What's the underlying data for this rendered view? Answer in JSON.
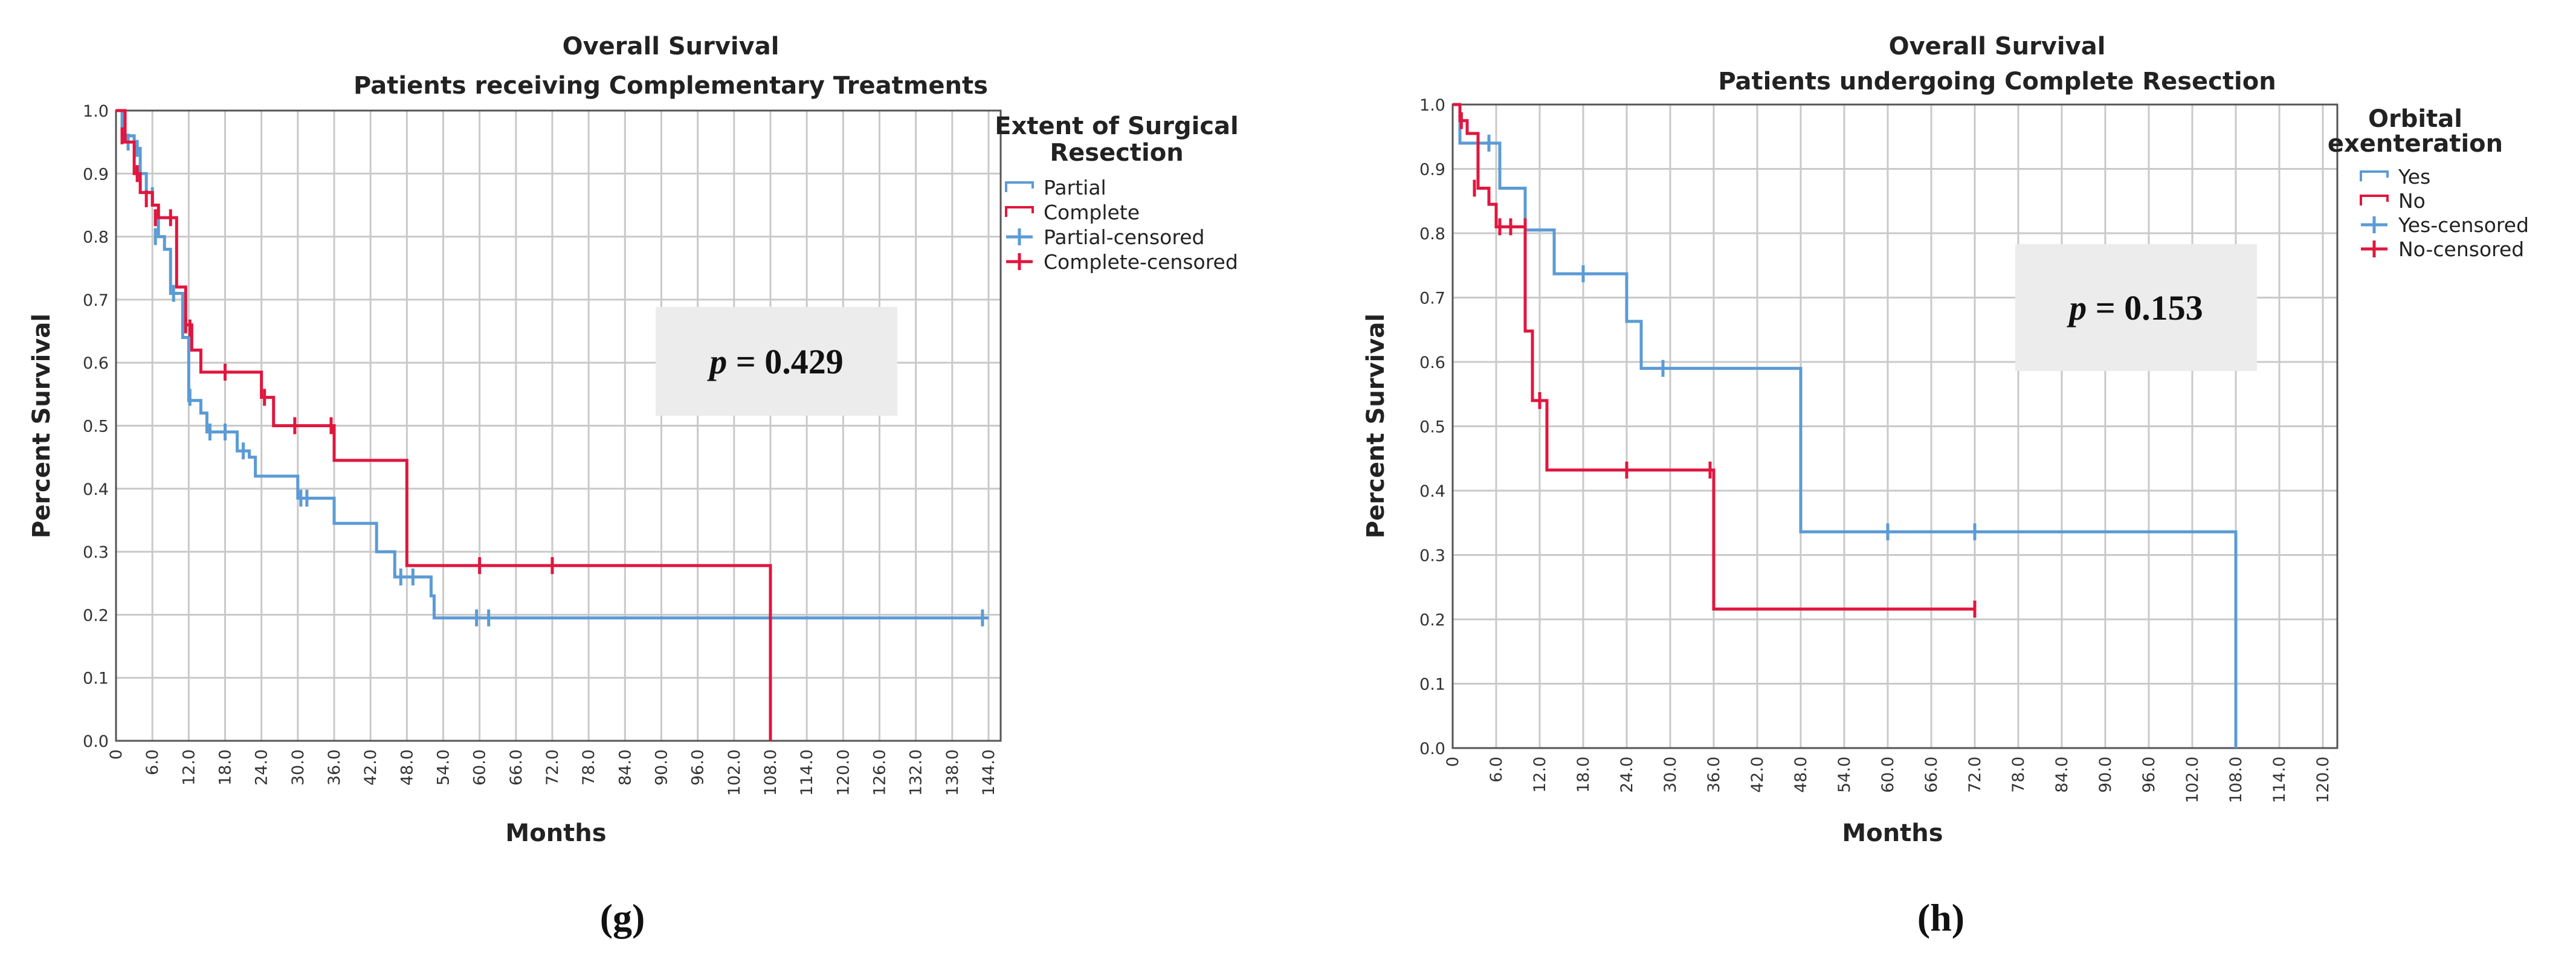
{
  "chart_data": [
    {
      "type": "line",
      "title": "Overall Survival",
      "subtitle": "Patients receiving Complementary Treatments",
      "xlabel": "Months",
      "ylabel": "Percent Survival",
      "xlim": [
        0,
        146
      ],
      "ylim": [
        0,
        1.0
      ],
      "x_ticks": [
        "0",
        "6.0",
        "12.0",
        "18.0",
        "24.0",
        "30.0",
        "36.0",
        "42.0",
        "48.0",
        "54.0",
        "60.0",
        "66.0",
        "72.0",
        "78.0",
        "84.0",
        "90.0",
        "96.0",
        "102.0",
        "108.0",
        "114.0",
        "120.0",
        "126.0",
        "132.0",
        "138.0",
        "144.0"
      ],
      "y_ticks": [
        "0.0",
        "0.1",
        "0.2",
        "0.3",
        "0.4",
        "0.5",
        "0.6",
        "0.7",
        "0.8",
        "0.9",
        "1.0"
      ],
      "grid": true,
      "legend_placement": "right",
      "legend_title": "Extent of Surgical Resection",
      "legend_title_lines": [
        "Extent of Surgical",
        "Resection"
      ],
      "legend": [
        "Partial",
        "Complete",
        "Partial-censored",
        "Complete-censored"
      ],
      "annotation": {
        "p_symbol": "p",
        "p_rest": " = 0.429"
      },
      "caption": "(g)",
      "series": [
        {
          "name": "Partial",
          "color": "#5b9bd5",
          "steps": [
            [
              0,
              1.0
            ],
            [
              1,
              0.96
            ],
            [
              3,
              0.94
            ],
            [
              4,
              0.9
            ],
            [
              5,
              0.87
            ],
            [
              6,
              0.85
            ],
            [
              7,
              0.8
            ],
            [
              8,
              0.78
            ],
            [
              9,
              0.71
            ],
            [
              11,
              0.64
            ],
            [
              12,
              0.54
            ],
            [
              14,
              0.52
            ],
            [
              15,
              0.49
            ],
            [
              20,
              0.46
            ],
            [
              22,
              0.45
            ],
            [
              23,
              0.42
            ],
            [
              30,
              0.385
            ],
            [
              36,
              0.345
            ],
            [
              43,
              0.3
            ],
            [
              46,
              0.26
            ],
            [
              52,
              0.23
            ],
            [
              52.5,
              0.195
            ],
            [
              144,
              0.195
            ]
          ],
          "censored": [
            [
              2,
              0.95
            ],
            [
              3.5,
              0.94
            ],
            [
              6,
              0.865
            ],
            [
              6.5,
              0.8
            ],
            [
              9.5,
              0.71
            ],
            [
              12.2,
              0.545
            ],
            [
              15.5,
              0.49
            ],
            [
              18,
              0.49
            ],
            [
              21,
              0.46
            ],
            [
              30.5,
              0.385
            ],
            [
              31.5,
              0.385
            ],
            [
              47,
              0.26
            ],
            [
              49,
              0.26
            ],
            [
              59.5,
              0.195
            ],
            [
              61.5,
              0.195
            ],
            [
              143,
              0.195
            ]
          ]
        },
        {
          "name": "Complete",
          "color": "#e0163e",
          "steps": [
            [
              0,
              1.0
            ],
            [
              1.5,
              0.95
            ],
            [
              3,
              0.9
            ],
            [
              4,
              0.87
            ],
            [
              6,
              0.85
            ],
            [
              7,
              0.83
            ],
            [
              10,
              0.72
            ],
            [
              11.5,
              0.66
            ],
            [
              12.5,
              0.62
            ],
            [
              14,
              0.585
            ],
            [
              24,
              0.545
            ],
            [
              26,
              0.5
            ],
            [
              36,
              0.445
            ],
            [
              48,
              0.278
            ],
            [
              108,
              0.278
            ],
            [
              108,
              0.0
            ]
          ],
          "censored": [
            [
              1,
              0.96
            ],
            [
              3.5,
              0.9
            ],
            [
              5,
              0.86
            ],
            [
              6.5,
              0.83
            ],
            [
              9,
              0.83
            ],
            [
              11.5,
              0.66
            ],
            [
              12.2,
              0.655
            ],
            [
              18,
              0.585
            ],
            [
              24.5,
              0.545
            ],
            [
              29.5,
              0.5
            ],
            [
              35.5,
              0.5
            ],
            [
              60,
              0.278
            ],
            [
              72,
              0.278
            ]
          ]
        }
      ]
    },
    {
      "type": "line",
      "title": "Overall Survival",
      "subtitle": "Patients undergoing Complete Resection",
      "xlabel": "Months",
      "ylabel": "Percent Survival",
      "xlim": [
        0,
        122
      ],
      "ylim": [
        0,
        1.0
      ],
      "x_ticks": [
        "0",
        "6.0",
        "12.0",
        "18.0",
        "24.0",
        "30.0",
        "36.0",
        "42.0",
        "48.0",
        "54.0",
        "60.0",
        "66.0",
        "72.0",
        "78.0",
        "84.0",
        "90.0",
        "96.0",
        "102.0",
        "108.0",
        "114.0",
        "120.0"
      ],
      "y_ticks": [
        "0.0",
        "0.1",
        "0.2",
        "0.3",
        "0.4",
        "0.5",
        "0.6",
        "0.7",
        "0.8",
        "0.9",
        "1.0"
      ],
      "grid": true,
      "legend_placement": "right",
      "legend_title": "Orbital exenteration",
      "legend_title_lines": [
        "Orbital",
        "exenteration"
      ],
      "legend": [
        "Yes",
        "No",
        "Yes-censored",
        "No-censored"
      ],
      "annotation": {
        "p_symbol": "p",
        "p_rest": " = 0.153"
      },
      "caption": "(h)",
      "series": [
        {
          "name": "Yes",
          "color": "#5b9bd5",
          "steps": [
            [
              0,
              1.0
            ],
            [
              1,
              0.94
            ],
            [
              6.5,
              0.87
            ],
            [
              10,
              0.805
            ],
            [
              14,
              0.737
            ],
            [
              24,
              0.663
            ],
            [
              26,
              0.59
            ],
            [
              48,
              0.336
            ],
            [
              108,
              0.336
            ],
            [
              108,
              0.0
            ]
          ],
          "censored": [
            [
              5,
              0.94
            ],
            [
              18,
              0.737
            ],
            [
              29,
              0.59
            ],
            [
              60,
              0.336
            ],
            [
              72,
              0.336
            ]
          ]
        },
        {
          "name": "No",
          "color": "#e0163e",
          "steps": [
            [
              0,
              1.0
            ],
            [
              1,
              0.975
            ],
            [
              2,
              0.955
            ],
            [
              3.5,
              0.87
            ],
            [
              5,
              0.845
            ],
            [
              6,
              0.81
            ],
            [
              10,
              0.648
            ],
            [
              11,
              0.54
            ],
            [
              13,
              0.432
            ],
            [
              36,
              0.216
            ],
            [
              72,
              0.216
            ]
          ],
          "censored": [
            [
              1.2,
              0.975
            ],
            [
              3,
              0.87
            ],
            [
              6.5,
              0.81
            ],
            [
              8,
              0.81
            ],
            [
              10,
              0.81
            ],
            [
              12,
              0.54
            ],
            [
              24,
              0.432
            ],
            [
              35.5,
              0.432
            ],
            [
              72,
              0.216
            ]
          ]
        }
      ]
    }
  ]
}
